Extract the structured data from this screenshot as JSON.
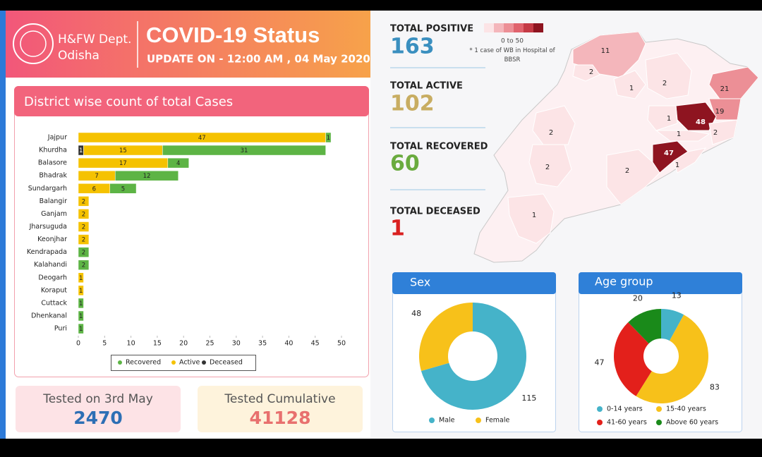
{
  "header": {
    "dept": "H&FW Dept.",
    "state": "Odisha",
    "title": "COVID-19 Status",
    "update": "UPDATE ON - 12:00 AM , 04 May 2020"
  },
  "stats": [
    {
      "label": "TOTAL POSITIVE",
      "value": 163,
      "color": "#3a8fbf"
    },
    {
      "label": "TOTAL ACTIVE",
      "value": 102,
      "color": "#c8ad62"
    },
    {
      "label": "TOTAL RECOVERED",
      "value": 60,
      "color": "#6aab3f"
    },
    {
      "label": "TOTAL DECEASED",
      "value": 1,
      "color": "#d92020"
    }
  ],
  "map": {
    "scale_label": "0 to 50",
    "scale_lim": [
      0,
      50
    ],
    "scale_colors": [
      "#fce4e6",
      "#f4b6bb",
      "#ec8f96",
      "#e0636d",
      "#c43a45",
      "#8e1420"
    ],
    "note": "* 1 case of WB in Hospital of BBSR",
    "values": [
      11,
      2,
      1,
      2,
      21,
      19,
      48,
      2,
      1,
      1,
      47,
      1,
      2,
      2,
      2,
      1
    ]
  },
  "tests": [
    {
      "label": "Tested on 3rd May",
      "value": 2470,
      "color": "#2d6fb5",
      "bg": "#fde3e6"
    },
    {
      "label": "Tested Cumulative",
      "value": 41128,
      "color": "#e8706e",
      "bg": "#fef3dc"
    }
  ],
  "chart_data": [
    {
      "type": "bar",
      "orientation": "horizontal",
      "stacked": true,
      "title": "District wise count of total Cases",
      "categories": [
        "Jajpur",
        "Khurdha",
        "Balasore",
        "Bhadrak",
        "Sundargarh",
        "Balangir",
        "Ganjam",
        "Jharsuguda",
        "Keonjhar",
        "Kendrapada",
        "Kalahandi",
        "Deogarh",
        "Koraput",
        "Cuttack",
        "Dhenkanal",
        "Puri"
      ],
      "series": [
        {
          "name": "Recovered",
          "color": "#5db445",
          "values": [
            1,
            31,
            4,
            12,
            5,
            0,
            0,
            0,
            0,
            2,
            2,
            0,
            0,
            1,
            1,
            1
          ]
        },
        {
          "name": "Active",
          "color": "#f5c200",
          "values": [
            47,
            15,
            17,
            7,
            6,
            2,
            2,
            2,
            2,
            0,
            0,
            1,
            1,
            0,
            0,
            0
          ]
        },
        {
          "name": "Deceased",
          "color": "#333333",
          "values": [
            0,
            1,
            0,
            0,
            0,
            0,
            0,
            0,
            0,
            0,
            0,
            0,
            0,
            0,
            0,
            0
          ]
        }
      ],
      "xlim": [
        0,
        50
      ],
      "xticks": [
        0,
        5,
        10,
        15,
        20,
        25,
        30,
        35,
        40,
        45,
        50
      ]
    },
    {
      "type": "donut",
      "title": "Sex",
      "categories": [
        "Male",
        "Female"
      ],
      "values": [
        115,
        48
      ],
      "colors": [
        "#45b3c9",
        "#f7c11a"
      ]
    },
    {
      "type": "donut",
      "title": "Age group",
      "categories": [
        "0-14 years",
        "15-40 years",
        "41-60 years",
        "Above 60 years"
      ],
      "values": [
        13,
        83,
        47,
        20
      ],
      "colors": [
        "#45b3c9",
        "#f7c11a",
        "#e3201b",
        "#1a8a1a"
      ]
    }
  ]
}
